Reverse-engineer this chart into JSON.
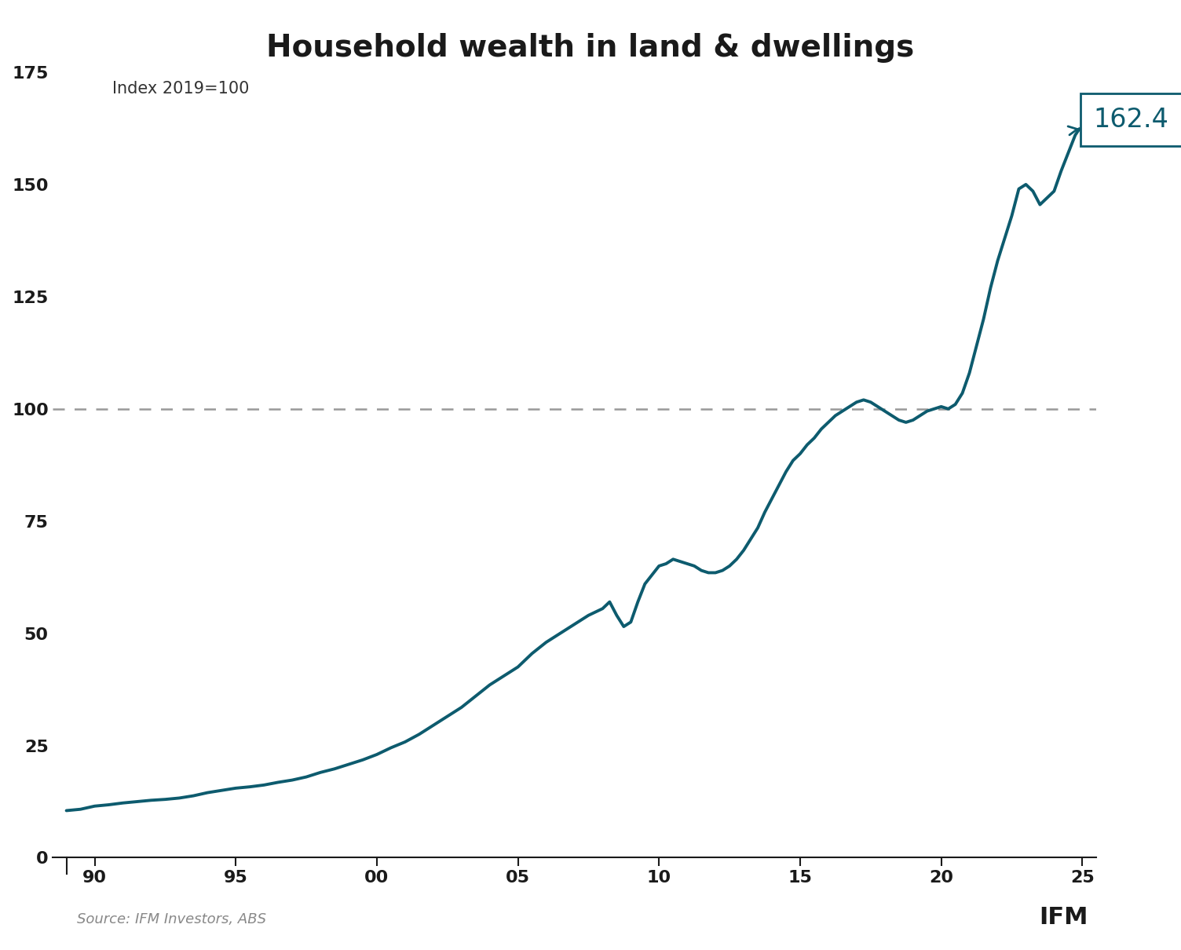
{
  "title": "Household wealth in land & dwellings",
  "subtitle": "Index 2019=100",
  "source": "Source: IFM Investors, ABS",
  "line_color": "#0D5B6E",
  "dashed_line_color": "#999999",
  "annotation_value": "162.4",
  "annotation_color": "#0D5B6E",
  "background_color": "#ffffff",
  "ylim": [
    0,
    180
  ],
  "yticks": [
    0,
    25,
    50,
    75,
    100,
    125,
    150,
    175
  ],
  "xtick_positions": [
    1990,
    1995,
    2000,
    2005,
    2010,
    2015,
    2020,
    2025
  ],
  "xtick_labels": [
    "90",
    "95",
    "00",
    "05",
    "10",
    "15",
    "20",
    "25"
  ],
  "xlim": [
    1988.5,
    2025.5
  ],
  "reference_value": 100,
  "title_fontsize": 28,
  "subtitle_fontsize": 15,
  "tick_fontsize": 16,
  "source_fontsize": 13,
  "annotation_fontsize": 24,
  "data_points": [
    [
      1989.0,
      10.5
    ],
    [
      1989.5,
      10.8
    ],
    [
      1990.0,
      11.5
    ],
    [
      1990.5,
      11.8
    ],
    [
      1991.0,
      12.2
    ],
    [
      1991.5,
      12.5
    ],
    [
      1992.0,
      12.8
    ],
    [
      1992.5,
      13.0
    ],
    [
      1993.0,
      13.3
    ],
    [
      1993.5,
      13.8
    ],
    [
      1994.0,
      14.5
    ],
    [
      1994.5,
      15.0
    ],
    [
      1995.0,
      15.5
    ],
    [
      1995.5,
      15.8
    ],
    [
      1996.0,
      16.2
    ],
    [
      1996.5,
      16.8
    ],
    [
      1997.0,
      17.3
    ],
    [
      1997.5,
      18.0
    ],
    [
      1998.0,
      19.0
    ],
    [
      1998.5,
      19.8
    ],
    [
      1999.0,
      20.8
    ],
    [
      1999.5,
      21.8
    ],
    [
      2000.0,
      23.0
    ],
    [
      2000.5,
      24.5
    ],
    [
      2001.0,
      25.8
    ],
    [
      2001.5,
      27.5
    ],
    [
      2002.0,
      29.5
    ],
    [
      2002.5,
      31.5
    ],
    [
      2003.0,
      33.5
    ],
    [
      2003.5,
      36.0
    ],
    [
      2004.0,
      38.5
    ],
    [
      2004.5,
      40.5
    ],
    [
      2005.0,
      42.5
    ],
    [
      2005.5,
      45.5
    ],
    [
      2006.0,
      48.0
    ],
    [
      2006.5,
      50.0
    ],
    [
      2007.0,
      52.0
    ],
    [
      2007.5,
      54.0
    ],
    [
      2008.0,
      55.5
    ],
    [
      2008.25,
      57.0
    ],
    [
      2008.5,
      54.0
    ],
    [
      2008.75,
      51.5
    ],
    [
      2009.0,
      52.5
    ],
    [
      2009.25,
      57.0
    ],
    [
      2009.5,
      61.0
    ],
    [
      2009.75,
      63.0
    ],
    [
      2010.0,
      65.0
    ],
    [
      2010.25,
      65.5
    ],
    [
      2010.5,
      66.5
    ],
    [
      2010.75,
      66.0
    ],
    [
      2011.0,
      65.5
    ],
    [
      2011.25,
      65.0
    ],
    [
      2011.5,
      64.0
    ],
    [
      2011.75,
      63.5
    ],
    [
      2012.0,
      63.5
    ],
    [
      2012.25,
      64.0
    ],
    [
      2012.5,
      65.0
    ],
    [
      2012.75,
      66.5
    ],
    [
      2013.0,
      68.5
    ],
    [
      2013.25,
      71.0
    ],
    [
      2013.5,
      73.5
    ],
    [
      2013.75,
      77.0
    ],
    [
      2014.0,
      80.0
    ],
    [
      2014.25,
      83.0
    ],
    [
      2014.5,
      86.0
    ],
    [
      2014.75,
      88.5
    ],
    [
      2015.0,
      90.0
    ],
    [
      2015.25,
      92.0
    ],
    [
      2015.5,
      93.5
    ],
    [
      2015.75,
      95.5
    ],
    [
      2016.0,
      97.0
    ],
    [
      2016.25,
      98.5
    ],
    [
      2016.5,
      99.5
    ],
    [
      2016.75,
      100.5
    ],
    [
      2017.0,
      101.5
    ],
    [
      2017.25,
      102.0
    ],
    [
      2017.5,
      101.5
    ],
    [
      2017.75,
      100.5
    ],
    [
      2018.0,
      99.5
    ],
    [
      2018.25,
      98.5
    ],
    [
      2018.5,
      97.5
    ],
    [
      2018.75,
      97.0
    ],
    [
      2019.0,
      97.5
    ],
    [
      2019.25,
      98.5
    ],
    [
      2019.5,
      99.5
    ],
    [
      2019.75,
      100.0
    ],
    [
      2020.0,
      100.5
    ],
    [
      2020.25,
      100.0
    ],
    [
      2020.5,
      101.0
    ],
    [
      2020.75,
      103.5
    ],
    [
      2021.0,
      108.0
    ],
    [
      2021.25,
      114.0
    ],
    [
      2021.5,
      120.0
    ],
    [
      2021.75,
      127.0
    ],
    [
      2022.0,
      133.0
    ],
    [
      2022.25,
      138.0
    ],
    [
      2022.5,
      143.0
    ],
    [
      2022.75,
      149.0
    ],
    [
      2023.0,
      150.0
    ],
    [
      2023.25,
      148.5
    ],
    [
      2023.5,
      145.5
    ],
    [
      2023.75,
      147.0
    ],
    [
      2024.0,
      148.5
    ],
    [
      2024.25,
      153.0
    ],
    [
      2024.5,
      157.0
    ],
    [
      2024.75,
      161.0
    ],
    [
      2024.9,
      162.4
    ]
  ]
}
